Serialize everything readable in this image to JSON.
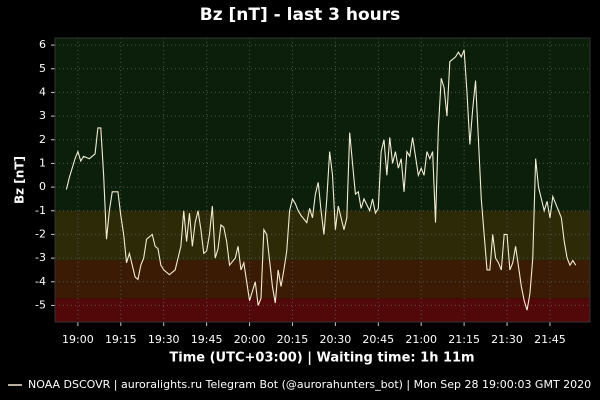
{
  "chart_data": {
    "type": "line",
    "title": "Bz [nT] - last 3 hours",
    "y_label": "Bz [nT]",
    "x_label": "Time (UTC+03:00) | Waiting time: 1h 11m",
    "xlim": [
      "18:52",
      "21:59"
    ],
    "xticks": [
      "19:00",
      "19:15",
      "19:30",
      "19:45",
      "20:00",
      "20:15",
      "20:30",
      "20:45",
      "21:00",
      "21:15",
      "21:30",
      "21:45"
    ],
    "ylim": [
      -5.7,
      6.3
    ],
    "yticks": [
      -5,
      -4,
      -3,
      -2,
      -1,
      0,
      1,
      2,
      3,
      4,
      5,
      6
    ],
    "grid": true,
    "legend_position": "bottom-left",
    "bands": [
      {
        "from": -1,
        "to": 6.3,
        "color": "#0b1f0b"
      },
      {
        "from": -3.1,
        "to": -1,
        "color": "#2c2a07"
      },
      {
        "from": -4.7,
        "to": -3.1,
        "color": "#3c1b05"
      },
      {
        "from": -5.7,
        "to": -4.7,
        "color": "#520808"
      }
    ],
    "x": [
      "18:56",
      "18:57",
      "18:59",
      "19:00",
      "19:01",
      "19:02",
      "19:04",
      "19:06",
      "19:07",
      "19:08",
      "19:09",
      "19:10",
      "19:11",
      "19:12",
      "19:14",
      "19:15",
      "19:16",
      "19:17",
      "19:18",
      "19:20",
      "19:21",
      "19:22",
      "19:23",
      "19:24",
      "19:26",
      "19:27",
      "19:28",
      "19:29",
      "19:30",
      "19:32",
      "19:34",
      "19:36",
      "19:37",
      "19:38",
      "19:39",
      "19:40",
      "19:41",
      "19:42",
      "19:43",
      "19:44",
      "19:45",
      "19:46",
      "19:47",
      "19:48",
      "19:49",
      "19:50",
      "19:51",
      "19:52",
      "19:53",
      "19:55",
      "19:56",
      "19:57",
      "19:58",
      "19:59",
      "20:00",
      "20:02",
      "20:03",
      "20:04",
      "20:05",
      "20:06",
      "20:08",
      "20:09",
      "20:10",
      "20:11",
      "20:12",
      "20:13",
      "20:14",
      "20:15",
      "20:16",
      "20:17",
      "20:18",
      "20:20",
      "20:21",
      "20:22",
      "20:23",
      "20:24",
      "20:25",
      "20:26",
      "20:27",
      "20:28",
      "20:29",
      "20:30",
      "20:31",
      "20:33",
      "20:34",
      "20:35",
      "20:36",
      "20:37",
      "20:38",
      "20:39",
      "20:40",
      "20:42",
      "20:43",
      "20:44",
      "20:45",
      "20:46",
      "20:47",
      "20:48",
      "20:49",
      "20:50",
      "20:51",
      "20:52",
      "20:53",
      "20:54",
      "20:55",
      "20:56",
      "20:57",
      "20:59",
      "21:00",
      "21:01",
      "21:02",
      "21:03",
      "21:04",
      "21:05",
      "21:06",
      "21:07",
      "21:08",
      "21:09",
      "21:10",
      "21:12",
      "21:13",
      "21:14",
      "21:15",
      "21:16",
      "21:17",
      "21:18",
      "21:19",
      "21:20",
      "21:21",
      "21:22",
      "21:23",
      "21:24",
      "21:25",
      "21:26",
      "21:27",
      "21:28",
      "21:29",
      "21:30",
      "21:31",
      "21:32",
      "21:33",
      "21:35",
      "21:36",
      "21:37",
      "21:38",
      "21:39",
      "21:40",
      "21:41",
      "21:42",
      "21:43",
      "21:44",
      "21:45",
      "21:46",
      "21:47",
      "21:48",
      "21:49",
      "21:50",
      "21:51",
      "21:52",
      "21:53",
      "21:54"
    ],
    "series": [
      {
        "name": "NOAA DSCOVR | auroralights.ru Telegram Bot (@aurorahunters_bot) | Mon Sep 28 19:00:03 GMT 2020",
        "color": "#f3ecd2",
        "values": [
          -0.1,
          0.4,
          1.2,
          1.5,
          1.1,
          1.3,
          1.2,
          1.4,
          2.5,
          2.5,
          0.5,
          -2.2,
          -1.0,
          -0.2,
          -0.2,
          -1.2,
          -2.0,
          -3.2,
          -2.8,
          -3.8,
          -3.9,
          -3.3,
          -3.0,
          -2.2,
          -2.0,
          -2.5,
          -2.6,
          -3.3,
          -3.5,
          -3.7,
          -3.5,
          -2.5,
          -1.0,
          -2.3,
          -1.1,
          -2.5,
          -1.5,
          -1.0,
          -1.8,
          -2.8,
          -2.7,
          -2.0,
          -0.8,
          -3.0,
          -2.6,
          -1.6,
          -1.7,
          -2.3,
          -3.3,
          -3.0,
          -2.5,
          -3.5,
          -3.2,
          -4.0,
          -4.8,
          -4.0,
          -5.0,
          -4.7,
          -1.8,
          -2.0,
          -4.2,
          -4.9,
          -3.5,
          -4.2,
          -3.5,
          -2.7,
          -1.0,
          -0.5,
          -0.7,
          -1.0,
          -1.2,
          -1.5,
          -0.9,
          -1.3,
          -0.3,
          0.2,
          -1.0,
          -2.0,
          -0.5,
          1.5,
          0.5,
          -1.8,
          -0.8,
          -1.8,
          -1.3,
          2.3,
          1.0,
          -0.3,
          -0.2,
          -0.9,
          -0.5,
          -1.0,
          -0.5,
          -1.1,
          -0.9,
          1.5,
          2.0,
          0.5,
          2.1,
          1.0,
          1.5,
          0.8,
          1.2,
          -0.2,
          1.5,
          1.3,
          2.1,
          0.5,
          0.8,
          0.5,
          1.5,
          1.2,
          1.5,
          -1.5,
          2.5,
          4.6,
          4.2,
          3.0,
          5.3,
          5.5,
          5.7,
          5.5,
          5.8,
          4.0,
          1.8,
          3.3,
          4.5,
          2.0,
          -0.5,
          -2.0,
          -3.5,
          -3.5,
          -2.0,
          -3.0,
          -3.2,
          -3.5,
          -2.0,
          -2.0,
          -3.5,
          -3.2,
          -2.5,
          -4.2,
          -4.8,
          -5.2,
          -4.5,
          -3.0,
          1.2,
          0.0,
          -0.5,
          -1.0,
          -0.6,
          -1.3,
          -0.4,
          -0.7,
          -1.0,
          -1.3,
          -2.3,
          -3.0,
          -3.3,
          -3.1,
          -3.3
        ]
      }
    ]
  }
}
